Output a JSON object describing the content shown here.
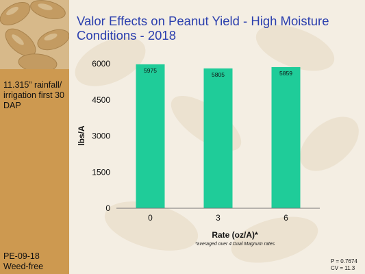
{
  "slide": {
    "title_line1": "Valor Effects on Peanut Yield - High Moisture",
    "title_line2": "Conditions - 2018",
    "rainfall_note": "11.315” rainfall/ irrigation first 30 DAP",
    "trial_code": "PE-09-18",
    "weed_status": "Weed-free",
    "p_value": "P = 0.7674",
    "cv_value": "CV = 11.3",
    "footnote": "*averaged over 4 Dual Magnum rates"
  },
  "colors": {
    "bar": "#1fcc99",
    "title": "#2b3fae",
    "sidebar": "#cd9950"
  },
  "chart_data": {
    "type": "bar",
    "categories": [
      "0",
      "3",
      "6"
    ],
    "values": [
      5975,
      5805,
      5859
    ],
    "data_labels": [
      "5975",
      "5805",
      "5859"
    ],
    "xlabel": "Rate (oz/A)*",
    "ylabel": "lbs/A",
    "ylim": [
      0,
      6000
    ],
    "yticks": [
      "0",
      "1500",
      "3000",
      "4500",
      "6000"
    ],
    "grid": false,
    "legend": "none"
  }
}
